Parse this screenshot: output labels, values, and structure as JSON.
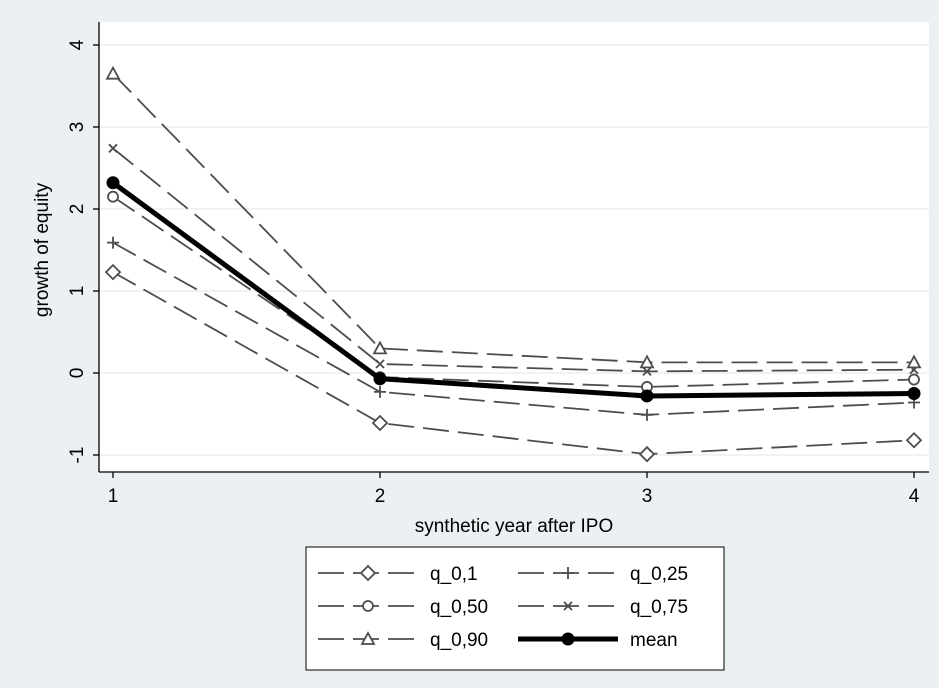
{
  "chart_data": {
    "type": "line",
    "xlabel": "synthetic year after IPO",
    "ylabel": "growth of equity",
    "x": [
      1,
      2,
      3,
      4
    ],
    "xlim": [
      1,
      4
    ],
    "ylim": [
      -1,
      4
    ],
    "xticks": [
      "1",
      "2",
      "3",
      "4"
    ],
    "yticks": [
      "-1",
      "0",
      "1",
      "2",
      "3",
      "4"
    ],
    "grid": true,
    "legend_position": "bottom",
    "series": [
      {
        "name": "q_0,1",
        "marker": "diamond",
        "style": "dashed",
        "values": [
          1.23,
          -0.61,
          -0.99,
          -0.82
        ]
      },
      {
        "name": "q_0,25",
        "marker": "plus",
        "style": "dashed",
        "values": [
          1.59,
          -0.23,
          -0.51,
          -0.36
        ]
      },
      {
        "name": "q_0,50",
        "marker": "circle",
        "style": "dashed",
        "values": [
          2.15,
          -0.05,
          -0.17,
          -0.08
        ]
      },
      {
        "name": "q_0,75",
        "marker": "x",
        "style": "dashed",
        "values": [
          2.74,
          0.11,
          0.02,
          0.04
        ]
      },
      {
        "name": "q_0,90",
        "marker": "triangle",
        "style": "dashed",
        "values": [
          3.65,
          0.3,
          0.13,
          0.13
        ]
      },
      {
        "name": "mean",
        "marker": "filled-circle",
        "style": "solid",
        "values": [
          2.32,
          -0.07,
          -0.28,
          -0.25
        ]
      }
    ],
    "colors": {
      "line": "#4d4d4d",
      "mean": "#000000",
      "plot_bg": "#ffffff",
      "outer_bg": "#ebf0f3",
      "grid": "#e4ecef"
    }
  }
}
